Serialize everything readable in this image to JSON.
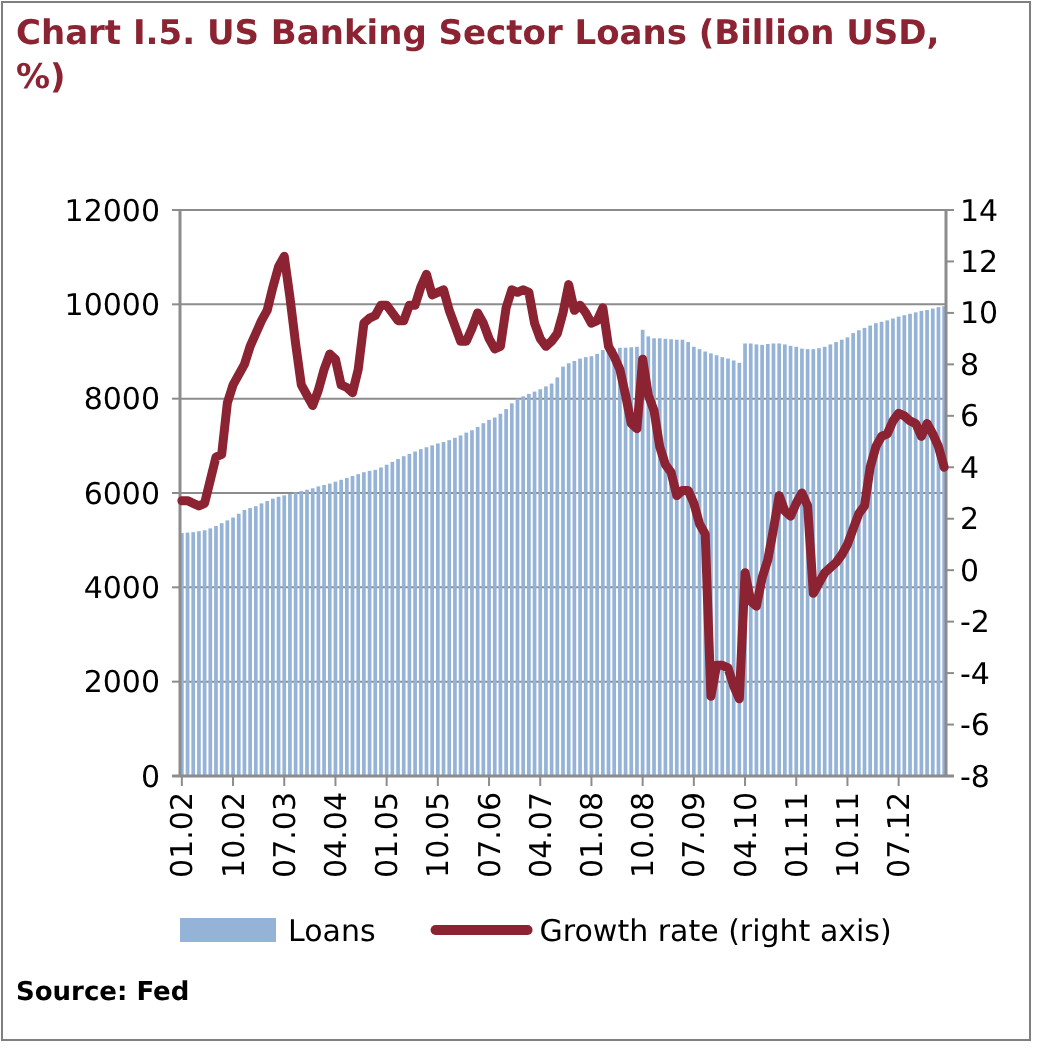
{
  "chart_data": {
    "type": "bar",
    "title": "Chart I.5. US Banking Sector Loans (Billion USD, %)",
    "categories": [
      "01.02",
      null,
      null,
      null,
      null,
      null,
      null,
      null,
      null,
      "10.02",
      null,
      null,
      null,
      null,
      null,
      null,
      null,
      null,
      "07.03",
      null,
      null,
      null,
      null,
      null,
      null,
      null,
      null,
      "04.04",
      null,
      null,
      null,
      null,
      null,
      null,
      null,
      null,
      "01.05",
      null,
      null,
      null,
      null,
      null,
      null,
      null,
      null,
      "10.05",
      null,
      null,
      null,
      null,
      null,
      null,
      null,
      null,
      "07.06",
      null,
      null,
      null,
      null,
      null,
      null,
      null,
      null,
      "04.07",
      null,
      null,
      null,
      null,
      null,
      null,
      null,
      null,
      "01.08",
      null,
      null,
      null,
      null,
      null,
      null,
      null,
      null,
      "10.08",
      null,
      null,
      null,
      null,
      null,
      null,
      null,
      null,
      "07.09",
      null,
      null,
      null,
      null,
      null,
      null,
      null,
      null,
      "04.10",
      null,
      null,
      null,
      null,
      null,
      null,
      null,
      null,
      "01.11",
      null,
      null,
      null,
      null,
      null,
      null,
      null,
      null,
      "10.11",
      null,
      null,
      null,
      null,
      null,
      null,
      null,
      null,
      "07.12",
      null,
      null,
      null,
      null,
      null,
      null,
      null,
      null
    ],
    "series": [
      {
        "name": "Loans",
        "color": "#95b3d7",
        "values": [
          5150,
          5160,
          5170,
          5190,
          5210,
          5250,
          5300,
          5360,
          5420,
          5480,
          5560,
          5640,
          5680,
          5720,
          5780,
          5830,
          5880,
          5920,
          5950,
          5980,
          6010,
          6040,
          6070,
          6100,
          6140,
          6170,
          6200,
          6240,
          6280,
          6320,
          6360,
          6400,
          6440,
          6470,
          6490,
          6540,
          6600,
          6660,
          6720,
          6780,
          6830,
          6880,
          6930,
          6970,
          7010,
          7050,
          7080,
          7120,
          7170,
          7220,
          7280,
          7330,
          7400,
          7480,
          7550,
          7600,
          7680,
          7780,
          7900,
          8000,
          8050,
          8100,
          8150,
          8200,
          8260,
          8320,
          8450,
          8680,
          8750,
          8800,
          8850,
          8880,
          8900,
          8950,
          9030,
          9050,
          9060,
          9080,
          9080,
          9090,
          9100,
          9460,
          9320,
          9280,
          9280,
          9270,
          9260,
          9250,
          9250,
          9200,
          9100,
          9050,
          9000,
          8960,
          8920,
          8880,
          8850,
          8810,
          8760,
          9170,
          9170,
          9150,
          9140,
          9160,
          9170,
          9170,
          9150,
          9120,
          9100,
          9060,
          9050,
          9050,
          9070,
          9100,
          9150,
          9200,
          9250,
          9300,
          9390,
          9450,
          9500,
          9550,
          9600,
          9630,
          9660,
          9700,
          9740,
          9770,
          9800,
          9830,
          9860,
          9880,
          9910,
          9940,
          9960
        ]
      },
      {
        "name": "Growth rate (right axis)",
        "type": "line",
        "axis": "y2",
        "color": "#8b2332",
        "values": [
          2.7,
          2.7,
          2.6,
          2.5,
          2.6,
          3.5,
          4.4,
          4.5,
          6.5,
          7.2,
          7.6,
          8.0,
          8.7,
          9.2,
          9.7,
          10.1,
          11.0,
          11.8,
          12.2,
          10.6,
          8.8,
          7.2,
          6.8,
          6.4,
          7.0,
          7.8,
          8.4,
          8.2,
          7.2,
          7.1,
          6.9,
          7.8,
          9.6,
          9.8,
          9.9,
          10.3,
          10.3,
          10.0,
          9.7,
          9.7,
          10.3,
          10.3,
          11.0,
          11.5,
          10.7,
          10.8,
          10.9,
          10.1,
          9.5,
          8.9,
          8.9,
          9.4,
          10.0,
          9.6,
          9.0,
          8.6,
          8.7,
          10.2,
          10.9,
          10.8,
          10.9,
          10.8,
          9.6,
          9.0,
          8.7,
          8.9,
          9.2,
          10.0,
          11.1,
          10.1,
          10.3,
          10.0,
          9.6,
          9.7,
          10.2,
          8.7,
          8.3,
          7.8,
          6.8,
          5.7,
          5.5,
          8.2,
          6.8,
          6.2,
          4.8,
          4.1,
          3.8,
          2.9,
          3.1,
          3.1,
          2.6,
          1.8,
          1.4,
          -4.9,
          -3.7,
          -3.7,
          -3.8,
          -4.5,
          -5.0,
          -0.1,
          -1.2,
          -1.4,
          -0.3,
          0.4,
          1.6,
          2.9,
          2.3,
          2.1,
          2.6,
          3.0,
          2.5,
          -0.9,
          -0.5,
          -0.1,
          0.1,
          0.3,
          0.6,
          1.0,
          1.6,
          2.2,
          2.5,
          4.0,
          4.8,
          5.2,
          5.3,
          5.8,
          6.1,
          6.0,
          5.8,
          5.7,
          5.2,
          5.7,
          5.3,
          4.8,
          4.0
        ]
      }
    ],
    "ylim": [
      0,
      12000
    ],
    "yticks": [
      0,
      2000,
      4000,
      6000,
      8000,
      10000,
      12000
    ],
    "y2lim": [
      -8,
      14
    ],
    "y2ticks": [
      -8,
      -6,
      -4,
      -2,
      0,
      2,
      4,
      6,
      8,
      10,
      12,
      14
    ],
    "grid": "y",
    "legend": "bottom",
    "annotations": [
      "Source: Fed"
    ]
  }
}
